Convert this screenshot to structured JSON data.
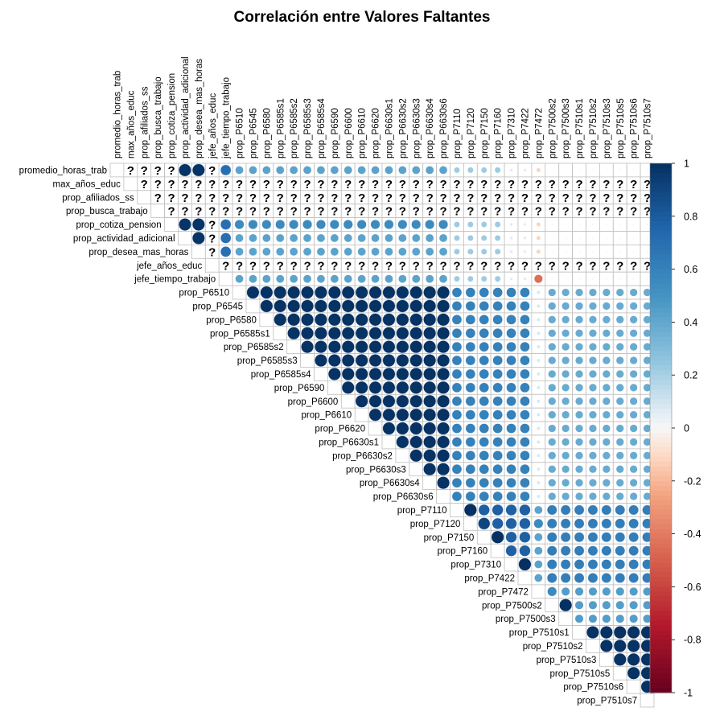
{
  "chart_data": {
    "type": "heatmap",
    "subtype": "upper-triangular correlation matrix (circle glyphs)",
    "title": "Correlación entre Valores Faltantes",
    "variables": [
      "promedio_horas_trab",
      "max_años_educ",
      "prop_afiliados_ss",
      "prop_busca_trabajo",
      "prop_cotiza_pension",
      "prop_actividad_adicional",
      "prop_desea_mas_horas",
      "jefe_años_educ",
      "jefe_tiempo_trabajo",
      "prop_P6510",
      "prop_P6545",
      "prop_P6580",
      "prop_P6585s1",
      "prop_P6585s2",
      "prop_P6585s3",
      "prop_P6585s4",
      "prop_P6590",
      "prop_P6600",
      "prop_P6610",
      "prop_P6620",
      "prop_P6630s1",
      "prop_P6630s2",
      "prop_P6630s3",
      "prop_P6630s4",
      "prop_P6630s6",
      "prop_P7110",
      "prop_P7120",
      "prop_P7150",
      "prop_P7160",
      "prop_P7310",
      "prop_P7422",
      "prop_P7472",
      "prop_P7500s2",
      "prop_P7500s3",
      "prop_P7510s1",
      "prop_P7510s2",
      "prop_P7510s3",
      "prop_P7510s5",
      "prop_P7510s6",
      "prop_P7510s7"
    ],
    "na_marker": "?",
    "undefined_variables": [
      "max_años_educ",
      "prop_afiliados_ss",
      "prop_busca_trabajo",
      "jefe_años_educ"
    ],
    "undefined_pairs": [
      [
        "promedio_horas_trab",
        "prop_afiliados_ss"
      ],
      [
        "promedio_horas_trab",
        "prop_busca_trabajo"
      ],
      [
        "promedio_horas_trab",
        "prop_cotiza_pension"
      ]
    ],
    "colorbar": {
      "range": [
        -1,
        1
      ],
      "ticks": [
        "1",
        "0.8",
        "0.6",
        "0.4",
        "0.2",
        "0",
        "-0.2",
        "-0.4",
        "-0.6",
        "-0.8",
        "-1"
      ]
    },
    "colors": {
      "neg": "#67001f",
      "mid": "#f7f7f7",
      "pos": "#053061",
      "grid": "#bfbfbf"
    },
    "blocks": [
      {
        "rows": [
          "promedio_horas_trab",
          "prop_cotiza_pension",
          "prop_actividad_adicional",
          "prop_desea_mas_horas"
        ],
        "cols": [
          "prop_cotiza_pension",
          "prop_actividad_adicional",
          "prop_desea_mas_horas"
        ],
        "r": 0.98
      },
      {
        "rows": [
          "promedio_horas_trab",
          "prop_cotiza_pension",
          "prop_actividad_adicional",
          "prop_desea_mas_horas"
        ],
        "cols": [
          "jefe_tiempo_trabajo"
        ],
        "r": 0.7
      },
      {
        "rows": [
          "promedio_horas_trab",
          "prop_actividad_adicional",
          "prop_desea_mas_horas",
          "jefe_tiempo_trabajo"
        ],
        "cols": [
          "prop_P6510",
          "prop_P6545",
          "prop_P6580",
          "prop_P6585s1",
          "prop_P6585s2",
          "prop_P6585s3",
          "prop_P6585s4",
          "prop_P6590",
          "prop_P6600",
          "prop_P6610",
          "prop_P6620",
          "prop_P6630s1",
          "prop_P6630s2",
          "prop_P6630s3",
          "prop_P6630s4",
          "prop_P6630s6"
        ],
        "r": 0.42
      },
      {
        "rows": [
          "prop_cotiza_pension"
        ],
        "cols": [
          "prop_P6510",
          "prop_P6545",
          "prop_P6580",
          "prop_P6585s1",
          "prop_P6585s2",
          "prop_P6585s3",
          "prop_P6585s4",
          "prop_P6590",
          "prop_P6600",
          "prop_P6610",
          "prop_P6620",
          "prop_P6630s1",
          "prop_P6630s2",
          "prop_P6630s3",
          "prop_P6630s4",
          "prop_P6630s6"
        ],
        "r": 0.55
      },
      {
        "rows": [
          "promedio_horas_trab",
          "prop_cotiza_pension",
          "prop_actividad_adicional",
          "prop_desea_mas_horas",
          "jefe_tiempo_trabajo"
        ],
        "cols": [
          "prop_P7110",
          "prop_P7120",
          "prop_P7150",
          "prop_P7160"
        ],
        "r": 0.22
      },
      {
        "rows": [
          "promedio_horas_trab",
          "prop_cotiza_pension",
          "prop_actividad_adicional",
          "prop_desea_mas_horas",
          "jefe_tiempo_trabajo"
        ],
        "cols": [
          "prop_P7310",
          "prop_P7422"
        ],
        "r": 0.06
      },
      {
        "rows": [
          "promedio_horas_trab",
          "prop_cotiza_pension",
          "prop_actividad_adicional",
          "prop_desea_mas_horas"
        ],
        "cols": [
          "prop_P7472"
        ],
        "r": -0.12
      },
      {
        "rows": [
          "jefe_tiempo_trabajo"
        ],
        "cols": [
          "prop_P7472"
        ],
        "r": -0.45
      },
      {
        "rows": [
          "promedio_horas_trab",
          "prop_cotiza_pension",
          "prop_actividad_adicional",
          "prop_desea_mas_horas",
          "jefe_tiempo_trabajo"
        ],
        "cols": [
          "prop_P7500s2",
          "prop_P7500s3",
          "prop_P7510s1",
          "prop_P7510s2",
          "prop_P7510s3",
          "prop_P7510s5",
          "prop_P7510s6",
          "prop_P7510s7"
        ],
        "r": 0.02
      },
      {
        "rows": [
          "prop_P6510",
          "prop_P6545",
          "prop_P6580",
          "prop_P6585s1",
          "prop_P6585s2",
          "prop_P6585s3",
          "prop_P6585s4",
          "prop_P6590",
          "prop_P6600",
          "prop_P6610",
          "prop_P6620",
          "prop_P6630s1",
          "prop_P6630s2",
          "prop_P6630s3",
          "prop_P6630s4",
          "prop_P6630s6"
        ],
        "cols": [
          "prop_P6545",
          "prop_P6580",
          "prop_P6585s1",
          "prop_P6585s2",
          "prop_P6585s3",
          "prop_P6585s4",
          "prop_P6590",
          "prop_P6600",
          "prop_P6610",
          "prop_P6620",
          "prop_P6630s1",
          "prop_P6630s2",
          "prop_P6630s3",
          "prop_P6630s4",
          "prop_P6630s6"
        ],
        "r": 0.99
      },
      {
        "rows": [
          "prop_P6510",
          "prop_P6545",
          "prop_P6580",
          "prop_P6585s1",
          "prop_P6585s2",
          "prop_P6585s3",
          "prop_P6585s4",
          "prop_P6590",
          "prop_P6600",
          "prop_P6610",
          "prop_P6620",
          "prop_P6630s1",
          "prop_P6630s2",
          "prop_P6630s3",
          "prop_P6630s4",
          "prop_P6630s6"
        ],
        "cols": [
          "prop_P7110",
          "prop_P7120",
          "prop_P7150",
          "prop_P7160",
          "prop_P7310",
          "prop_P7422"
        ],
        "r": 0.6
      },
      {
        "rows": [
          "prop_P6510",
          "prop_P6545",
          "prop_P6580",
          "prop_P6585s1",
          "prop_P6585s2",
          "prop_P6585s3",
          "prop_P6585s4",
          "prop_P6590",
          "prop_P6600",
          "prop_P6610",
          "prop_P6620",
          "prop_P6630s1",
          "prop_P6630s2",
          "prop_P6630s3",
          "prop_P6630s4",
          "prop_P6630s6"
        ],
        "cols": [
          "prop_P7472"
        ],
        "r": 0.08
      },
      {
        "rows": [
          "prop_P6510",
          "prop_P6545",
          "prop_P6580",
          "prop_P6585s1",
          "prop_P6585s2",
          "prop_P6585s3",
          "prop_P6585s4",
          "prop_P6590",
          "prop_P6600",
          "prop_P6610",
          "prop_P6620",
          "prop_P6630s1",
          "prop_P6630s2",
          "prop_P6630s3",
          "prop_P6630s4",
          "prop_P6630s6"
        ],
        "cols": [
          "prop_P7500s2",
          "prop_P7500s3",
          "prop_P7510s1",
          "prop_P7510s2",
          "prop_P7510s3",
          "prop_P7510s5",
          "prop_P7510s6",
          "prop_P7510s7"
        ],
        "r": 0.38
      },
      {
        "rows": [
          "prop_P7110",
          "prop_P7120",
          "prop_P7150",
          "prop_P7160",
          "prop_P7310",
          "prop_P7422"
        ],
        "cols": [
          "prop_P7120",
          "prop_P7150",
          "prop_P7160",
          "prop_P7310",
          "prop_P7422"
        ],
        "r": 0.78
      },
      {
        "rows": [
          "prop_P7110",
          "prop_P7120",
          "prop_P7150",
          "prop_P7160",
          "prop_P7310",
          "prop_P7422"
        ],
        "cols": [
          "prop_P7472"
        ],
        "r": 0.42
      },
      {
        "rows": [
          "prop_P7110",
          "prop_P7120",
          "prop_P7150",
          "prop_P7160",
          "prop_P7310",
          "prop_P7422"
        ],
        "cols": [
          "prop_P7500s2",
          "prop_P7500s3",
          "prop_P7510s1",
          "prop_P7510s2",
          "prop_P7510s3",
          "prop_P7510s5",
          "prop_P7510s6",
          "prop_P7510s7"
        ],
        "r": 0.62
      },
      {
        "rows": [
          "prop_P7472",
          "prop_P7500s2",
          "prop_P7500s3"
        ],
        "cols": [
          "prop_P7500s2",
          "prop_P7500s3",
          "prop_P7510s1",
          "prop_P7510s2",
          "prop_P7510s3",
          "prop_P7510s5",
          "prop_P7510s6",
          "prop_P7510s7"
        ],
        "r": 0.45
      },
      {
        "rows": [
          "prop_P7510s1",
          "prop_P7510s2",
          "prop_P7510s3",
          "prop_P7510s5",
          "prop_P7510s6"
        ],
        "cols": [
          "prop_P7510s2",
          "prop_P7510s3",
          "prop_P7510s5",
          "prop_P7510s6",
          "prop_P7510s7"
        ],
        "r": 0.99
      }
    ],
    "overrides": [
      {
        "row": "prop_P7110",
        "col": "prop_P7120",
        "r": 1.0
      },
      {
        "row": "prop_P7120",
        "col": "prop_P7150",
        "r": 0.9
      },
      {
        "row": "prop_P7150",
        "col": "prop_P7160",
        "r": 1.0
      },
      {
        "row": "prop_P7310",
        "col": "prop_P7422",
        "r": 1.0
      },
      {
        "row": "prop_P7500s2",
        "col": "prop_P7500s3",
        "r": 1.0
      },
      {
        "row": "prop_P7120",
        "col": "prop_P7472",
        "r": 0.55
      },
      {
        "row": "prop_P7472",
        "col": "prop_P7500s2",
        "r": 0.55
      }
    ]
  }
}
